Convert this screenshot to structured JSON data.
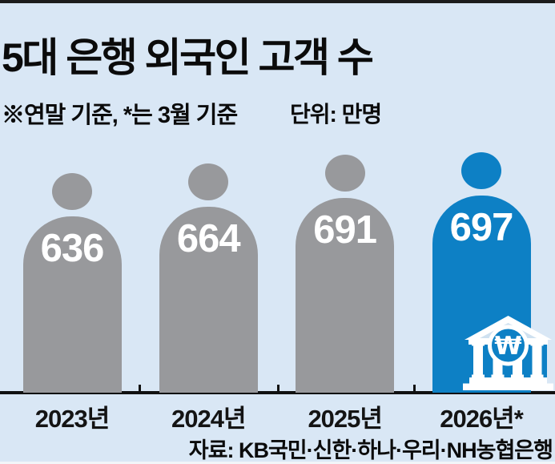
{
  "page": {
    "background": "#d9e7f5",
    "top_bar_color": "#1c1c1c",
    "axis_color": "#111111"
  },
  "header": {
    "title": "5대 은행 외국인 고객 수",
    "note": "※연말 기준, *는 3월 기준",
    "unit_label": "단위: 만명"
  },
  "chart_data": {
    "type": "bar",
    "variant": "person-pictogram",
    "title": "5대 은행 외국인 고객 수",
    "categories": [
      "2023년",
      "2024년",
      "2025년",
      "2026년*"
    ],
    "values": [
      636,
      664,
      691,
      697
    ],
    "unit": "만명",
    "xlabel": "",
    "ylabel": "",
    "ylim": [
      0,
      697
    ],
    "grid": false,
    "legend": "none",
    "bar_colors": [
      "#98999c",
      "#98999c",
      "#98999c",
      "#0d80c5"
    ],
    "highlight_index": 3,
    "value_label_color": "#ffffff"
  },
  "footer": {
    "source": "자료: KB국민·신한·하나·우리·NH농협은행"
  },
  "icons": {
    "bank_icon": {
      "name": "bank-building-won-icon",
      "symbol": "₩",
      "accent": "#0d80c5",
      "foreground": "#ffffff",
      "pediment_fill": "#cfe1f0"
    }
  }
}
